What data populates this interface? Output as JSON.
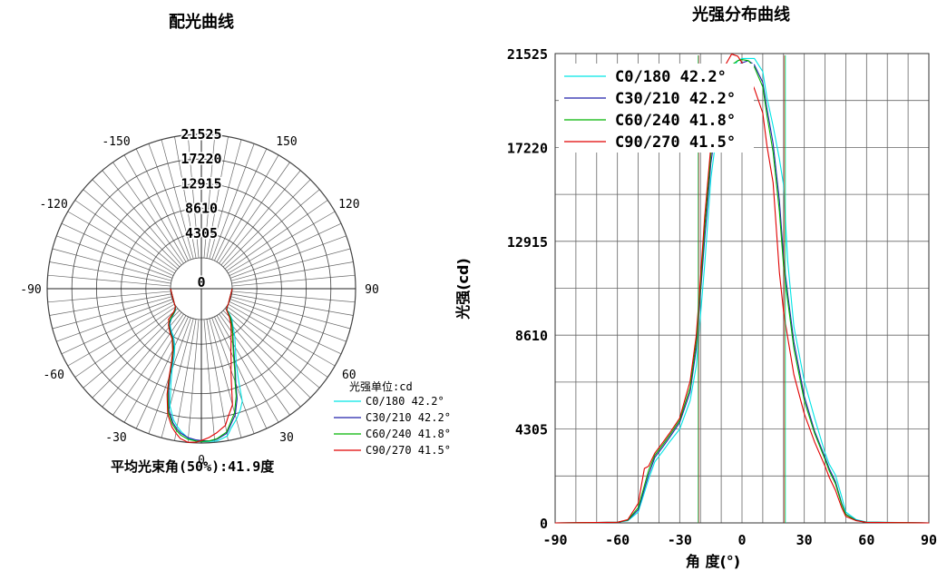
{
  "chart_data": [
    {
      "type": "polar",
      "title": "配光曲线",
      "radial_ticks": [
        "0",
        "4305",
        "8610",
        "12915",
        "17220",
        "21525"
      ],
      "radial_values": [
        0,
        4305,
        8610,
        12915,
        17220,
        21525
      ],
      "angle_labels": [
        {
          "angle": 0,
          "text": "0"
        },
        {
          "angle": 30,
          "text": "30"
        },
        {
          "angle": 60,
          "text": "60"
        },
        {
          "angle": 90,
          "text": "90"
        },
        {
          "angle": 120,
          "text": "120"
        },
        {
          "angle": 150,
          "text": "150"
        },
        {
          "angle": -30,
          "text": "-30"
        },
        {
          "angle": -60,
          "text": "-60"
        },
        {
          "angle": -90,
          "text": "-90"
        },
        {
          "angle": -120,
          "text": "-120"
        },
        {
          "angle": -150,
          "text": "-150"
        }
      ],
      "unit_label": "光强单位:cd",
      "footer": "平均光束角(50%):41.9度",
      "legend": [
        {
          "text": "C0/180  42.2°",
          "color": "#00e5e5"
        },
        {
          "text": "C30/210 42.2°",
          "color": "#2222aa"
        },
        {
          "text": "C60/240 41.8°",
          "color": "#00b400"
        },
        {
          "text": "C90/270 41.5°",
          "color": "#e00000"
        }
      ]
    },
    {
      "type": "line",
      "title": "光强分布曲线",
      "xlabel": "角 度(°)",
      "ylabel": "光强(cd)",
      "xlim": [
        -90,
        90
      ],
      "ylim": [
        0,
        21525
      ],
      "x_ticks": [
        -90,
        -60,
        -30,
        0,
        30,
        60,
        90
      ],
      "y_tick_labels": [
        "0",
        "4305",
        "8610",
        "12915",
        "17220",
        "21525"
      ],
      "y_tick_values": [
        0,
        4305,
        8610,
        12915,
        17220,
        21525
      ],
      "grid": true,
      "series": [
        {
          "name": "C0/180  42.2°",
          "color": "#00e5e5",
          "x": [
            -90,
            -60,
            -55,
            -50,
            -45,
            -42,
            -38,
            -35,
            -30,
            -25,
            -22,
            -20,
            -18,
            -15,
            -12,
            -10,
            -8,
            -5,
            -2,
            0,
            3,
            6,
            10,
            12,
            15,
            18,
            20,
            22,
            25,
            30,
            35,
            40,
            42,
            45,
            48,
            50,
            55,
            60,
            90
          ],
          "y": [
            0,
            30,
            100,
            500,
            2000,
            2800,
            3300,
            3700,
            4300,
            5600,
            7200,
            9500,
            11800,
            15800,
            18000,
            19000,
            19800,
            20800,
            21200,
            21300,
            21300,
            21300,
            20700,
            19500,
            18200,
            16700,
            15500,
            12000,
            9000,
            6500,
            4800,
            3200,
            2700,
            2200,
            1200,
            500,
            150,
            40,
            0
          ]
        },
        {
          "name": "C30/210 42.2°",
          "color": "#2222aa",
          "x": [
            -90,
            -60,
            -55,
            -50,
            -45,
            -42,
            -38,
            -35,
            -30,
            -25,
            -22,
            -20,
            -18,
            -15,
            -12,
            -10,
            -8,
            -5,
            -2,
            0,
            3,
            6,
            10,
            12,
            15,
            18,
            20,
            22,
            25,
            30,
            35,
            40,
            42,
            45,
            48,
            50,
            55,
            60,
            90
          ],
          "y": [
            0,
            30,
            120,
            600,
            2200,
            3000,
            3500,
            3900,
            4600,
            6000,
            8000,
            10500,
            13000,
            16500,
            18500,
            19400,
            20100,
            20700,
            21000,
            21100,
            21200,
            21000,
            20200,
            19000,
            17400,
            14800,
            12200,
            10500,
            8300,
            5800,
            4200,
            3000,
            2500,
            1900,
            900,
            400,
            120,
            30,
            0
          ]
        },
        {
          "name": "C60/240 41.8°",
          "color": "#00b400",
          "x": [
            -90,
            -60,
            -55,
            -50,
            -45,
            -42,
            -38,
            -35,
            -30,
            -25,
            -22,
            -20,
            -18,
            -15,
            -12,
            -10,
            -8,
            -5,
            -2,
            0,
            3,
            6,
            10,
            12,
            15,
            18,
            20,
            22,
            25,
            30,
            35,
            40,
            42,
            45,
            48,
            50,
            55,
            60,
            90
          ],
          "y": [
            0,
            30,
            130,
            700,
            2400,
            3100,
            3600,
            4000,
            4700,
            6200,
            8300,
            10800,
            13500,
            16900,
            18800,
            19700,
            20400,
            21000,
            21200,
            21250,
            21200,
            20900,
            20000,
            18700,
            17000,
            14300,
            11800,
            10200,
            8000,
            5600,
            4100,
            2900,
            2400,
            1800,
            850,
            380,
            110,
            30,
            0
          ]
        },
        {
          "name": "C90/270 41.5°",
          "color": "#e00000",
          "x": [
            -90,
            -60,
            -55,
            -50,
            -47,
            -45,
            -42,
            -38,
            -35,
            -30,
            -25,
            -22,
            -20,
            -18,
            -15,
            -12,
            -10,
            -8,
            -5,
            -2,
            0,
            3,
            6,
            10,
            12,
            15,
            18,
            20,
            22,
            25,
            30,
            35,
            40,
            42,
            45,
            48,
            50,
            55,
            60,
            90
          ],
          "y": [
            0,
            30,
            150,
            900,
            2500,
            2600,
            3200,
            3700,
            4100,
            4800,
            6500,
            8600,
            11200,
            14000,
            17300,
            19300,
            20200,
            21000,
            21500,
            21400,
            21100,
            20600,
            19900,
            18800,
            17300,
            15600,
            11500,
            9700,
            8500,
            6800,
            5000,
            3700,
            2600,
            2100,
            1500,
            700,
            300,
            100,
            25,
            0
          ]
        }
      ]
    }
  ]
}
